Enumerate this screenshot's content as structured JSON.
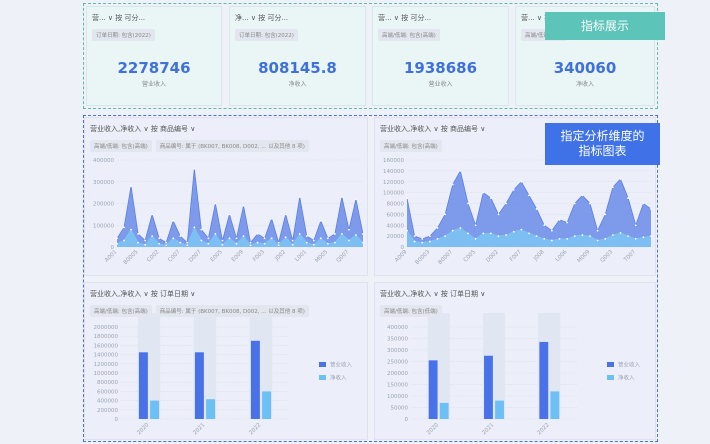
{
  "kpi_cards": [
    {
      "header": "营... ∨ 按 可分...",
      "filter": "订单日期: 包含(2022)",
      "value": 2278746,
      "label": "营业收入"
    },
    {
      "header": "净... ∨ 按 可分...",
      "filter": "订单日期: 包含(2022)",
      "value": 808145.8,
      "label": "净收入"
    },
    {
      "header": "营... ∨ 按 可分...",
      "filter": "高端/低端: 包含(高端)",
      "value": 1938686,
      "label": "营业收入"
    },
    {
      "header": "营... ∨ 按 可分...",
      "filter": "高端/低端: 包含",
      "value": 340060,
      "label": "净收入"
    }
  ],
  "callouts": [
    "指标展示",
    "指定分析维度的指标图表"
  ],
  "chart_data": [
    {
      "type": "area",
      "title": "营业收入,净收入 ∨ 按 商品编号 ∨",
      "filters": [
        "高端/低端: 包含(高端)",
        "商品编号: 属于 (BK007, BK008, D002, ... 以及其他 8 项)"
      ],
      "categories": [
        "A001",
        null,
        null,
        "B0005",
        null,
        null,
        "C002",
        null,
        null,
        "C007",
        null,
        null,
        "D007",
        null,
        null,
        "E005",
        null,
        null,
        "E009",
        null,
        null,
        "F003",
        null,
        null,
        "J002",
        null,
        null,
        "L001",
        null,
        null,
        "M005",
        null,
        null,
        "Q007",
        null,
        null
      ],
      "series": [
        {
          "color": "#5a7fe6",
          "values": [
            40000,
            90000,
            280000,
            60000,
            30000,
            150000,
            40000,
            20000,
            120000,
            50000,
            20000,
            360000,
            80000,
            40000,
            200000,
            30000,
            150000,
            40000,
            190000,
            20000,
            60000,
            40000,
            130000,
            20000,
            150000,
            30000,
            230000,
            50000,
            30000,
            120000,
            40000,
            60000,
            230000,
            80000,
            220000,
            60000
          ]
        },
        {
          "color": "#7cc4f4",
          "values": [
            15000,
            30000,
            80000,
            20000,
            10000,
            50000,
            15000,
            8000,
            40000,
            20000,
            8000,
            90000,
            30000,
            15000,
            60000,
            10000,
            40000,
            15000,
            50000,
            8000,
            20000,
            15000,
            40000,
            8000,
            45000,
            10000,
            60000,
            20000,
            10000,
            40000,
            15000,
            20000,
            60000,
            30000,
            55000,
            20000
          ]
        }
      ],
      "ylim": [
        0,
        400000
      ],
      "yticks": [
        0,
        100000,
        200000,
        300000,
        400000
      ],
      "grid": true
    },
    {
      "type": "area",
      "title": "营业收入,净收入 ∨ 按 商品编号 ∨",
      "filters": [
        "高端/低端: 包含(高端)"
      ],
      "categories": [
        "A009",
        null,
        null,
        "B0003",
        null,
        null,
        "B0007",
        null,
        null,
        "C005",
        null,
        null,
        "D002",
        null,
        null,
        "F007",
        null,
        null,
        "J008",
        null,
        null,
        "L006",
        null,
        null,
        "M009",
        null,
        null,
        "Q003",
        null,
        null,
        "T007",
        null,
        null
      ],
      "series": [
        {
          "color": "#5a7fe6",
          "values": [
            90000,
            20000,
            15000,
            20000,
            35000,
            60000,
            115000,
            140000,
            80000,
            40000,
            100000,
            90000,
            60000,
            80000,
            105000,
            120000,
            95000,
            70000,
            40000,
            30000,
            50000,
            45000,
            80000,
            95000,
            80000,
            30000,
            60000,
            110000,
            125000,
            90000,
            40000,
            80000,
            70000
          ]
        },
        {
          "color": "#7cc4f4",
          "values": [
            30000,
            10000,
            8000,
            10000,
            15000,
            20000,
            30000,
            35000,
            25000,
            15000,
            25000,
            25000,
            20000,
            22000,
            28000,
            32000,
            25000,
            20000,
            15000,
            12000,
            15000,
            15000,
            20000,
            22000,
            20000,
            12000,
            15000,
            22000,
            26000,
            20000,
            15000,
            18000,
            20000
          ]
        }
      ],
      "ylim": [
        0,
        160000
      ],
      "yticks": [
        0,
        20000,
        40000,
        60000,
        80000,
        100000,
        120000,
        140000,
        160000
      ],
      "grid": true
    },
    {
      "type": "bar",
      "title": "营业收入,净收入 ∨ 按 订单日期 ∨",
      "filters": [
        "高端/低端: 包含(高端)",
        "商品编号: 属于 (BK007, BK008, D002, ... 以及其他 8 项)"
      ],
      "categories": [
        "2020",
        "2021",
        "2022"
      ],
      "series": [
        {
          "name": "营业收入",
          "color": "#4a72e8",
          "values": [
            1450000,
            1450000,
            1700000
          ]
        },
        {
          "name": "净收入",
          "color": "#6cc0f5",
          "values": [
            400000,
            430000,
            600000
          ]
        }
      ],
      "ylim": [
        0,
        2000000
      ],
      "yticks": [
        0,
        200000,
        400000,
        600000,
        800000,
        1000000,
        1200000,
        1400000,
        1600000,
        1800000,
        2000000
      ],
      "grid": true
    },
    {
      "type": "bar",
      "title": "营业收入,净收入 ∨ 按 订单日期 ∨",
      "filters": [
        "高端/低端: 包含(低端)"
      ],
      "categories": [
        "2020",
        "2021",
        "2022"
      ],
      "series": [
        {
          "name": "营业收入",
          "color": "#4a72e8",
          "values": [
            255000,
            275000,
            335000
          ]
        },
        {
          "name": "净收入",
          "color": "#6cc0f5",
          "values": [
            70000,
            80000,
            120000
          ]
        }
      ],
      "ylim": [
        0,
        400000
      ],
      "yticks": [
        0,
        50000,
        100000,
        150000,
        200000,
        250000,
        300000,
        350000,
        400000
      ],
      "grid": true
    }
  ]
}
